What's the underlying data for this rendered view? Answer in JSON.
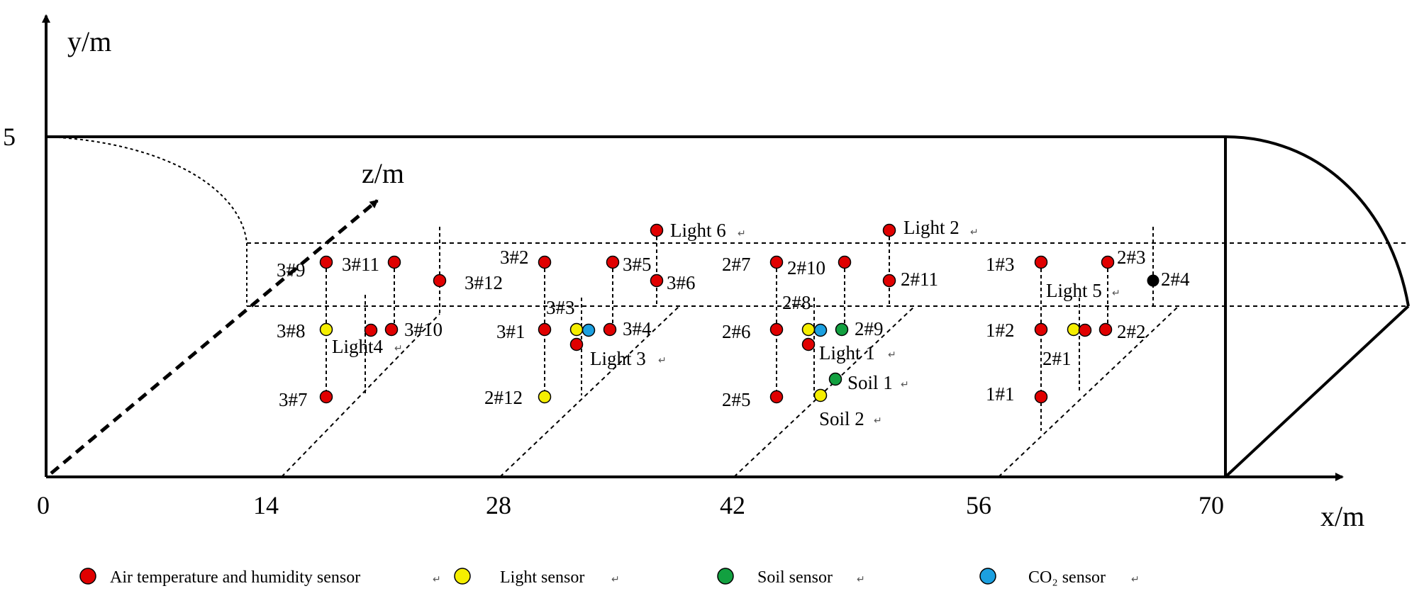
{
  "axes": {
    "y_label": "y/m",
    "z_label": "z/m",
    "x_label": "x/m",
    "y_tick": "5",
    "x_ticks": [
      "0",
      "14",
      "28",
      "42",
      "56",
      "70"
    ]
  },
  "colors": {
    "air": "#e00000",
    "light": "#f5ee00",
    "soil": "#12a040",
    "co2": "#1ca0e0"
  },
  "sensors": [
    {
      "type": "air",
      "label": "3#9"
    },
    {
      "type": "air",
      "label": "3#11"
    },
    {
      "type": "air",
      "label": "3#12"
    },
    {
      "type": "air",
      "label": "3#8"
    },
    {
      "type": "light",
      "label": "Light4"
    },
    {
      "type": "air",
      "label": "3#10"
    },
    {
      "type": "air",
      "label": "3#7"
    },
    {
      "type": "air",
      "label": "3#2"
    },
    {
      "type": "air",
      "label": "3#1"
    },
    {
      "type": "air",
      "label": "3#3"
    },
    {
      "type": "light",
      "label": ""
    },
    {
      "type": "co2",
      "label": "Light 3"
    },
    {
      "type": "air",
      "label": "2#12"
    },
    {
      "type": "light",
      "label": "Light 6"
    },
    {
      "type": "air",
      "label": "3#5"
    },
    {
      "type": "air",
      "label": "3#6"
    },
    {
      "type": "air",
      "label": "3#4"
    },
    {
      "type": "air",
      "label": "2#7"
    },
    {
      "type": "air",
      "label": "2#6"
    },
    {
      "type": "air",
      "label": "2#5"
    },
    {
      "type": "air",
      "label": "2#10"
    },
    {
      "type": "air",
      "label": "2#8"
    },
    {
      "type": "light",
      "label": ""
    },
    {
      "type": "co2",
      "label": "Light 1"
    },
    {
      "type": "air",
      "label": "2#9"
    },
    {
      "type": "soil",
      "label": "Soil 1"
    },
    {
      "type": "soil",
      "label": "Soil 2"
    },
    {
      "type": "light",
      "label": "Light 2"
    },
    {
      "type": "air",
      "label": "2#11"
    },
    {
      "type": "air",
      "label": "1#3"
    },
    {
      "type": "air",
      "label": "1#2"
    },
    {
      "type": "air",
      "label": "1#1"
    },
    {
      "type": "air",
      "label": "2#1"
    },
    {
      "type": "light",
      "label": "Light 5"
    },
    {
      "type": "air",
      "label": "2#3"
    },
    {
      "type": "air",
      "label": "2#2"
    },
    {
      "type": "air",
      "label": "2#4"
    }
  ],
  "legend": [
    {
      "type": "air",
      "label": "Air  temperature and humidity sensor"
    },
    {
      "type": "light",
      "label": "Light sensor"
    },
    {
      "type": "soil",
      "label": "Soil sensor"
    },
    {
      "type": "co2",
      "label": "CO₂ sensor"
    }
  ]
}
